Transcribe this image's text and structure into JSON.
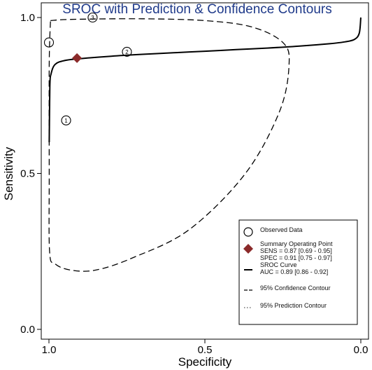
{
  "chart_data": {
    "type": "scatter",
    "title": "SROC with Prediction & Confidence Contours",
    "xlabel": "Specificity",
    "ylabel": "Sensitivity",
    "x_reversed": true,
    "xlim": [
      1.0,
      0.0
    ],
    "ylim": [
      0.0,
      1.0
    ],
    "xticks": [
      "1.0",
      "0.5",
      "0.0"
    ],
    "yticks": [
      "0.0",
      "0.5",
      "1.0"
    ],
    "grid": false,
    "legend_position": "bottom-right",
    "observed": [
      {
        "label": "1",
        "specificity": 0.945,
        "sensitivity": 0.67
      },
      {
        "label": "2",
        "specificity": 0.75,
        "sensitivity": 0.89
      },
      {
        "label": "3",
        "specificity": 0.86,
        "sensitivity": 1.0
      },
      {
        "label": "",
        "specificity": 1.0,
        "sensitivity": 0.92
      }
    ],
    "summary_point": {
      "specificity": 0.91,
      "sensitivity": 0.87
    },
    "sroc_curve": [
      [
        1.0,
        0.0
      ],
      [
        0.999,
        0.6
      ],
      [
        0.997,
        0.78
      ],
      [
        0.993,
        0.82
      ],
      [
        0.98,
        0.85
      ],
      [
        0.95,
        0.862
      ],
      [
        0.9,
        0.868
      ],
      [
        0.8,
        0.876
      ],
      [
        0.7,
        0.882
      ],
      [
        0.6,
        0.887
      ],
      [
        0.5,
        0.892
      ],
      [
        0.4,
        0.897
      ],
      [
        0.3,
        0.902
      ],
      [
        0.2,
        0.908
      ],
      [
        0.1,
        0.916
      ],
      [
        0.05,
        0.922
      ],
      [
        0.02,
        0.93
      ],
      [
        0.005,
        0.95
      ],
      [
        0.0,
        1.0
      ]
    ],
    "confidence_contour": [
      [
        0.995,
        0.99
      ],
      [
        0.93,
        0.994
      ],
      [
        0.7,
        0.996
      ],
      [
        0.5,
        0.99
      ],
      [
        0.35,
        0.97
      ],
      [
        0.25,
        0.92
      ],
      [
        0.23,
        0.85
      ],
      [
        0.26,
        0.7
      ],
      [
        0.37,
        0.5
      ],
      [
        0.55,
        0.32
      ],
      [
        0.73,
        0.23
      ],
      [
        0.85,
        0.19
      ],
      [
        0.93,
        0.19
      ],
      [
        0.98,
        0.21
      ],
      [
        0.998,
        0.25
      ],
      [
        0.999,
        0.5
      ],
      [
        0.999,
        0.85
      ],
      [
        0.995,
        0.99
      ]
    ],
    "legend": [
      {
        "kind": "observed",
        "lines": [
          "Observed Data"
        ]
      },
      {
        "kind": "summary",
        "lines": [
          "Summary Operating Point",
          "SENS = 0.87 [0.69 - 0.95]",
          "SPEC = 0.91 [0.75 - 0.97]"
        ]
      },
      {
        "kind": "sroc",
        "lines": [
          "SROC Curve",
          "AUC = 0.89 [0.86 - 0.92]"
        ]
      },
      {
        "kind": "confidence",
        "lines": [
          "95% Confidence Contour"
        ]
      },
      {
        "kind": "prediction",
        "lines": [
          "95% Prediction Contour"
        ]
      }
    ],
    "colors": {
      "title": "#1f3a8a",
      "summary": "#8b2a2a",
      "curve": "#000000",
      "text": "#111111"
    }
  }
}
